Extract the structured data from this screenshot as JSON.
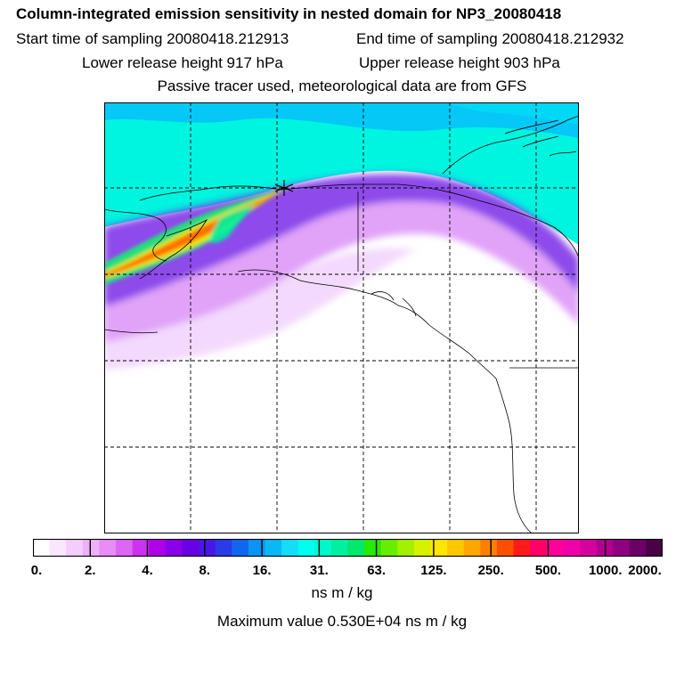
{
  "header": {
    "title": "Column-integrated emission sensitivity in nested domain for NP3_20080418",
    "start_label": "Start time of sampling 20080418.212913",
    "end_label": "End time of sampling 20080418.212932",
    "lower_label": "Lower release height  917 hPa",
    "upper_label": "Upper release height  903 hPa",
    "tracer_note": "Passive tracer used, meteorological data are from GFS"
  },
  "colorbar": {
    "tick_labels": [
      "0.",
      "2.",
      "4.",
      "8.",
      "16.",
      "31.",
      "63.",
      "125.",
      "250.",
      "500.",
      "1000.",
      "2000."
    ],
    "units": "ns m / kg",
    "colors": [
      "#ffffff",
      "#fbe6ff",
      "#f5cdfd",
      "#eeb0fb",
      "#e88cf8",
      "#dd66f5",
      "#cc33f0",
      "#b000ea",
      "#8a00e6",
      "#6a00e4",
      "#4b16e6",
      "#2b3be8",
      "#1166f0",
      "#0b93f5",
      "#0ab8f8",
      "#16dcfb",
      "#00ffee",
      "#00f7cb",
      "#00f0a0",
      "#00e96a",
      "#27ea00",
      "#67ed00",
      "#a3f000",
      "#d6f200",
      "#ffe600",
      "#ffc800",
      "#ffa600",
      "#ff7f00",
      "#ff4f00",
      "#ff1a1a",
      "#ff0066",
      "#ff0099",
      "#f000a8",
      "#d6009f",
      "#b10090",
      "#8f0080",
      "#6b0066",
      "#4a0047"
    ]
  },
  "max_value_text": "Maximum value  0.530E+04 ns m / kg",
  "map": {
    "source_marker": "receptor-cross"
  }
}
